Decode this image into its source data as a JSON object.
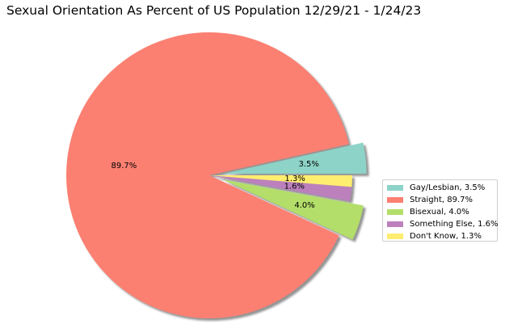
{
  "chart_data": {
    "type": "pie",
    "title": "Sexual Orientation As Percent of US Population 12/29/21 - 1/24/23",
    "slices": [
      {
        "label": "Gay/Lesbian",
        "value": 3.5,
        "pct_label": "3.5%",
        "legend": "Gay/Lesbian, 3.5%",
        "color": "#8dd3c7",
        "exploded": true
      },
      {
        "label": "Straight",
        "value": 89.7,
        "pct_label": "89.7%",
        "legend": "Straight, 89.7%",
        "color": "#fb8072",
        "exploded": false
      },
      {
        "label": "Bisexual",
        "value": 4.0,
        "pct_label": "4.0%",
        "legend": "Bisexual, 4.0%",
        "color": "#b3de69",
        "exploded": true
      },
      {
        "label": "Something Else",
        "value": 1.6,
        "pct_label": "1.6%",
        "legend": "Something Else, 1.6%",
        "color": "#bc80bd",
        "exploded": false
      },
      {
        "label": "Don't Know",
        "value": 1.3,
        "pct_label": "1.3%",
        "legend": "Don't Know, 1.3%",
        "color": "#ffed6f",
        "exploded": false
      }
    ],
    "start_angle_deg": 0,
    "direction": "counterclockwise",
    "shadow": true,
    "legend_position": "right"
  }
}
